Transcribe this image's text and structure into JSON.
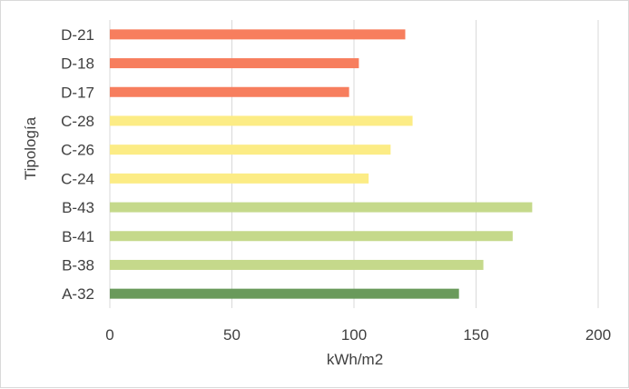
{
  "chart_data": {
    "type": "bar",
    "orientation": "horizontal",
    "categories": [
      "A-32",
      "B-38",
      "B-41",
      "B-43",
      "C-24",
      "C-26",
      "C-28",
      "D-17",
      "D-18",
      "D-21"
    ],
    "values": [
      143,
      153,
      165,
      173,
      106,
      115,
      124,
      98,
      102,
      121
    ],
    "colors": [
      "#6a9a5b",
      "#c5d98b",
      "#c5d98b",
      "#c5d98b",
      "#fcec85",
      "#fcec85",
      "#fcec85",
      "#f77e5e",
      "#f77e5e",
      "#f77e5e"
    ],
    "xlabel": "kWh/m2",
    "ylabel": "Tipología",
    "xlim": [
      0,
      200
    ],
    "xticks": [
      0,
      50,
      100,
      150,
      200
    ],
    "grid": "vertical",
    "legend": "none"
  }
}
